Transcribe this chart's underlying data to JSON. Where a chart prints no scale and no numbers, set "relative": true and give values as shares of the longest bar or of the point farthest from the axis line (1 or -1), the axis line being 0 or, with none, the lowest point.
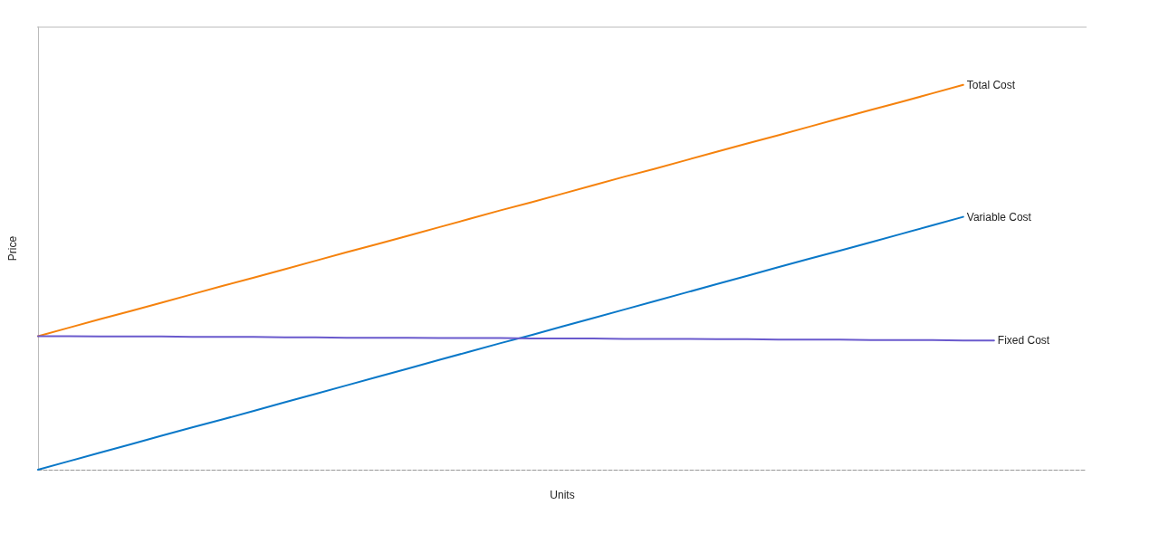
{
  "chart_data": {
    "type": "line",
    "relative": true,
    "xlabel": "Units",
    "ylabel": "Price",
    "legend": false,
    "grid": false,
    "marker": "none",
    "line_style": "solid",
    "categories": [
      null,
      null,
      null,
      null,
      null,
      null,
      null,
      null,
      null,
      null,
      null,
      null,
      null,
      null,
      null,
      null,
      null,
      null,
      null,
      null,
      null,
      null,
      null,
      null,
      null,
      null,
      null,
      null,
      null,
      null,
      null,
      null,
      null,
      null,
      null
    ],
    "series": [
      {
        "name": "Total Cost",
        "color": "#f5820d",
        "values": [
          0.347,
          0.369,
          0.391,
          0.412,
          0.434,
          0.456,
          0.478,
          0.499,
          0.521,
          0.543,
          0.565,
          0.586,
          0.608,
          0.63,
          0.652,
          0.674,
          0.695,
          0.717,
          0.739,
          0.761,
          0.782,
          0.804,
          0.826,
          0.848,
          0.869,
          0.891,
          0.913,
          0.935,
          0.956,
          0.978,
          1,
          null,
          null,
          null,
          null
        ]
      },
      {
        "name": "Variable Cost",
        "color": "#0a78c8",
        "values": [
          0,
          0.022,
          0.044,
          0.066,
          0.088,
          0.11,
          0.131,
          0.153,
          0.175,
          0.197,
          0.219,
          0.241,
          0.263,
          0.285,
          0.307,
          0.329,
          0.35,
          0.372,
          0.394,
          0.416,
          0.438,
          0.46,
          0.482,
          0.504,
          0.526,
          0.548,
          0.569,
          0.591,
          0.613,
          0.635,
          0.657,
          null,
          null,
          null,
          null
        ]
      },
      {
        "name": "Fixed Cost",
        "color": "#6a5acd",
        "values": [
          0.347,
          0.347,
          0.346,
          0.346,
          0.346,
          0.345,
          0.345,
          0.345,
          0.344,
          0.344,
          0.343,
          0.343,
          0.343,
          0.342,
          0.342,
          0.342,
          0.341,
          0.341,
          0.341,
          0.34,
          0.34,
          0.34,
          0.339,
          0.339,
          0.338,
          0.338,
          0.338,
          0.337,
          0.337,
          0.337,
          0.336,
          0.336,
          null,
          null,
          null
        ]
      }
    ]
  }
}
